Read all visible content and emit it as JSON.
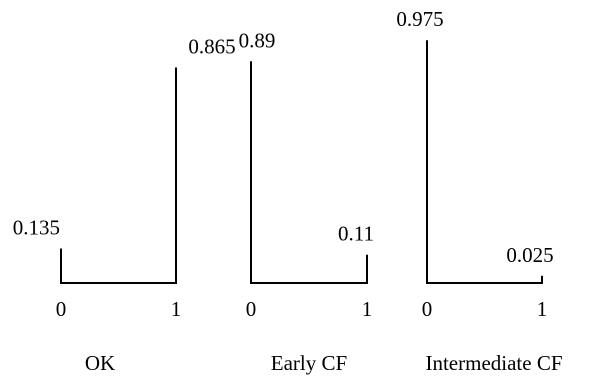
{
  "chart_data": {
    "type": "bar",
    "panels": [
      {
        "name": "OK",
        "categories": [
          "0",
          "1"
        ],
        "values": [
          0.135,
          0.865
        ],
        "value_labels": [
          "0.135",
          "0.865"
        ]
      },
      {
        "name": "Early CF",
        "categories": [
          "0",
          "1"
        ],
        "values": [
          0.89,
          0.11
        ],
        "value_labels": [
          "0.89",
          "0.11"
        ]
      },
      {
        "name": "Intermediate CF",
        "categories": [
          "0",
          "1"
        ],
        "values": [
          0.975,
          0.025
        ],
        "value_labels": [
          "0.975",
          "0.025"
        ]
      }
    ],
    "ylim": [
      0,
      1
    ],
    "grid": false
  }
}
